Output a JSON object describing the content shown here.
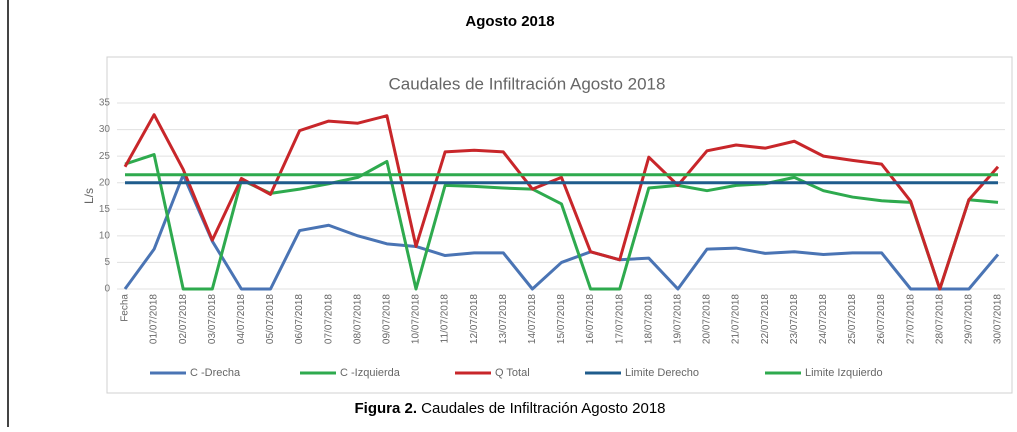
{
  "heading": "Agosto 2018",
  "caption": {
    "label": "Figura 2.",
    "text": "Caudales de Infiltración Agosto 2018"
  },
  "chart_data": {
    "type": "line",
    "title": "Caudales de Infiltración Agosto 2018",
    "y_label": "L/s",
    "categories": [
      "Fecha",
      "01/07/2018",
      "02/07/2018",
      "03/07/2018",
      "04/07/2018",
      "05/07/2018",
      "06/07/2018",
      "07/07/2018",
      "08/07/2018",
      "09/07/2018",
      "10/07/2018",
      "11/07/2018",
      "12/07/2018",
      "13/07/2018",
      "14/07/2018",
      "15/07/2018",
      "16/07/2018",
      "17/07/2018",
      "18/07/2018",
      "19/07/2018",
      "20/07/2018",
      "21/07/2018",
      "22/07/2018",
      "23/07/2018",
      "24/07/2018",
      "25/07/2018",
      "26/07/2018",
      "27/07/2018",
      "28/07/2018",
      "29/07/2018",
      "30/07/2018"
    ],
    "ylim": [
      0,
      35
    ],
    "yticks": [
      0,
      5,
      10,
      15,
      20,
      25,
      30,
      35
    ],
    "grid": true,
    "legend": "bottom",
    "series": [
      {
        "name": "C -Drecha",
        "color": "#4a74b4",
        "values": [
          0,
          7.5,
          21.5,
          9,
          0,
          0,
          11,
          12,
          10,
          8.5,
          8,
          6.3,
          6.8,
          6.8,
          0,
          5,
          7,
          5.5,
          5.8,
          0,
          7.5,
          7.7,
          6.7,
          7,
          6.5,
          6.8,
          6.8,
          0,
          0,
          0,
          6.5
        ]
      },
      {
        "name": "C -Izquierda",
        "color": "#2eaa4e",
        "values": [
          23.5,
          25.3,
          0,
          0,
          20.5,
          18,
          18.8,
          19.8,
          21,
          24,
          0,
          19.5,
          19.3,
          19,
          18.8,
          16,
          0,
          0,
          19,
          19.5,
          18.5,
          19.5,
          19.8,
          21,
          18.5,
          17.3,
          16.6,
          16.3,
          0,
          16.8,
          16.3
        ]
      },
      {
        "name": "Q Total",
        "color": "#c8262a",
        "values": [
          23,
          32.8,
          22.5,
          9.2,
          20.8,
          17.8,
          29.8,
          31.6,
          31.2,
          32.6,
          8,
          25.8,
          26.1,
          25.8,
          18.8,
          21,
          7,
          5.5,
          24.8,
          19.5,
          26,
          27.1,
          26.5,
          27.8,
          25,
          24.2,
          23.5,
          16.5,
          0,
          16.8,
          23
        ]
      },
      {
        "name": "Limite Derecho",
        "color": "#1f5c8c",
        "values": [
          20,
          20,
          20,
          20,
          20,
          20,
          20,
          20,
          20,
          20,
          20,
          20,
          20,
          20,
          20,
          20,
          20,
          20,
          20,
          20,
          20,
          20,
          20,
          20,
          20,
          20,
          20,
          20,
          20,
          20,
          20
        ]
      },
      {
        "name": "Limite Izquierdo",
        "color": "#2eaa4e",
        "values": [
          21.5,
          21.5,
          21.5,
          21.5,
          21.5,
          21.5,
          21.5,
          21.5,
          21.5,
          21.5,
          21.5,
          21.5,
          21.5,
          21.5,
          21.5,
          21.5,
          21.5,
          21.5,
          21.5,
          21.5,
          21.5,
          21.5,
          21.5,
          21.5,
          21.5,
          21.5,
          21.5,
          21.5,
          21.5,
          21.5,
          21.5
        ]
      }
    ]
  }
}
